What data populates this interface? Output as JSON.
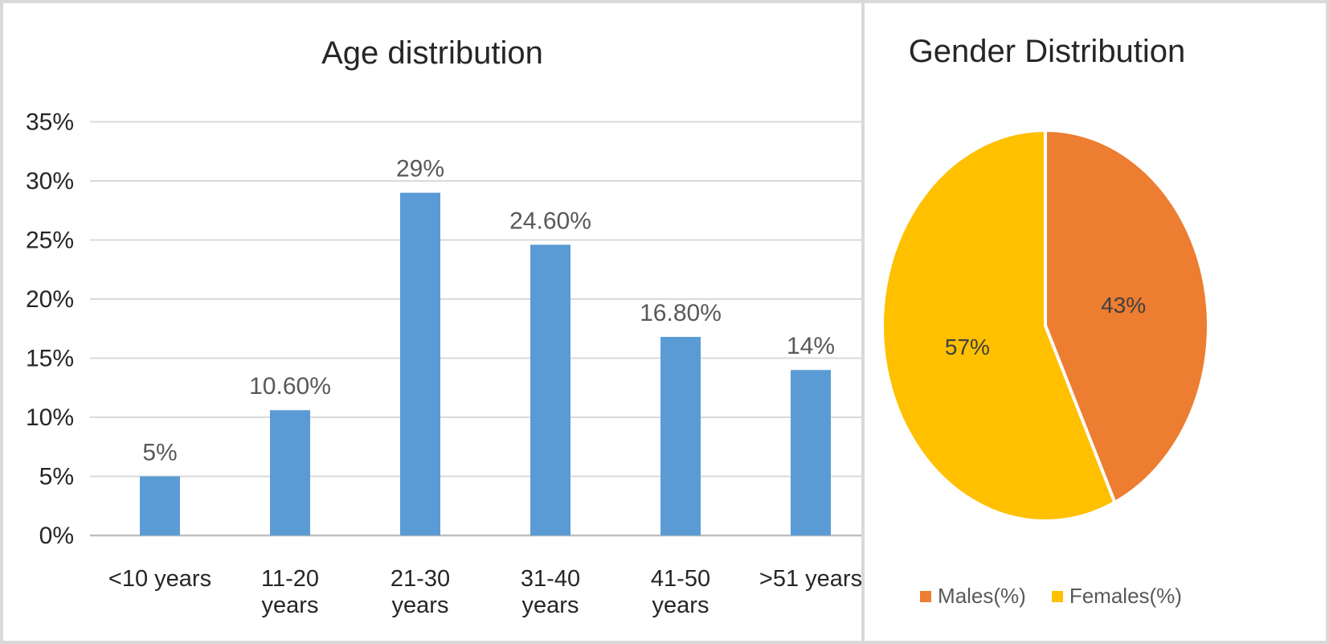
{
  "left_panel": {
    "title": "Age distribution"
  },
  "right_panel": {
    "title": "Gender Distribution"
  },
  "chart_data": [
    {
      "type": "bar",
      "title": "Age distribution",
      "categories": [
        "<10 years",
        "11-20 years",
        "21-30 years",
        "31-40 years",
        "41-50 years",
        ">51 years"
      ],
      "category_tick_lines": [
        [
          "<10 years"
        ],
        [
          "11-20",
          "years"
        ],
        [
          "21-30",
          "years"
        ],
        [
          "31-40",
          "years"
        ],
        [
          "41-50",
          "years"
        ],
        [
          ">51 years"
        ]
      ],
      "values": [
        5,
        10.6,
        29,
        24.6,
        16.8,
        14
      ],
      "data_labels": [
        "5%",
        "10.60%",
        "29%",
        "24.60%",
        "16.80%",
        "14%"
      ],
      "xlabel": "",
      "ylabel": "",
      "ylim": [
        0,
        35
      ],
      "ytick_step": 5,
      "ytick_labels": [
        "0%",
        "5%",
        "10%",
        "15%",
        "20%",
        "25%",
        "30%",
        "35%"
      ],
      "grid": true,
      "legend": "none",
      "bar_color": "#5B9BD5",
      "gridline_color": "#D9D9D9",
      "axis_line_color": "#BFBFBF",
      "axis_text_color": "#262626",
      "data_label_color": "#595959"
    },
    {
      "type": "pie",
      "title": "Gender Distribution",
      "labels": [
        "Males(%)",
        "Females(%)"
      ],
      "values": [
        43,
        57
      ],
      "data_labels": [
        "43%",
        "57%"
      ],
      "colors": [
        "#ED7D31",
        "#FFC000"
      ],
      "start_angle_deg": 0,
      "direction": "clockwise",
      "legend_position": "bottom",
      "slice_border_color": "#FFFFFF",
      "slice_label_color": "#404040",
      "legend_text_color": "#595959"
    }
  ]
}
